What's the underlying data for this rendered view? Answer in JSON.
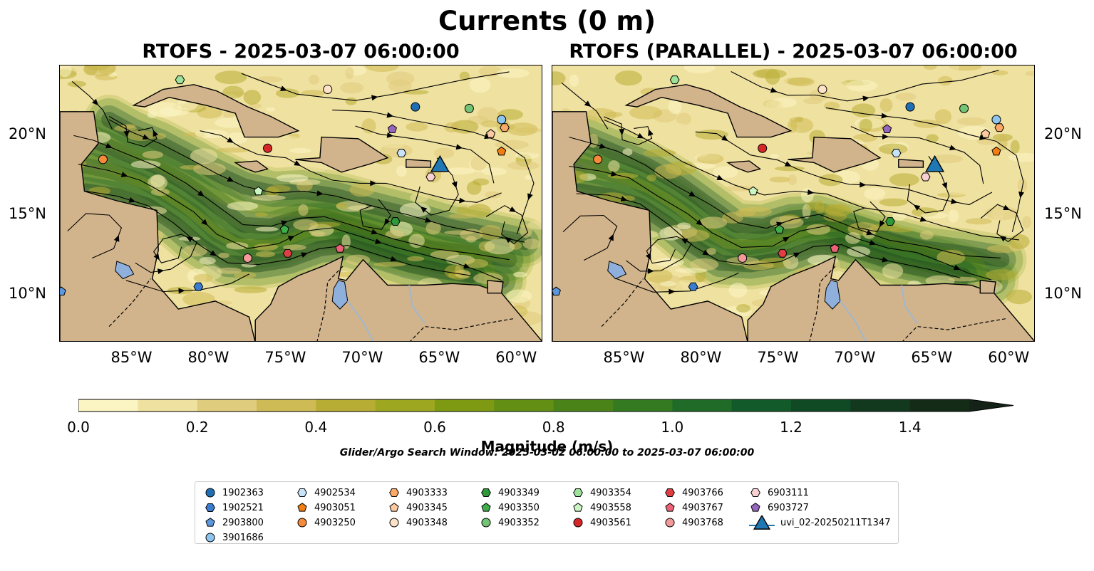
{
  "figure": {
    "suptitle": "Currents (0 m)",
    "search_window": "Glider/Argo Search Window: 2025-03-02 06:00:00 to 2025-03-07 06:00:00"
  },
  "panels": [
    {
      "title": "RTOFS - 2025-03-07 06:00:00"
    },
    {
      "title": "RTOFS (PARALLEL) - 2025-03-07 06:00:00"
    }
  ],
  "colors": {
    "land": "#d2b48c",
    "lake": "#8fb0dc",
    "river": "#9fb7cf",
    "colormap": [
      "#fbf5c4",
      "#efe1a0",
      "#e0cc7d",
      "#cfbb55",
      "#b8ad34",
      "#9da71f",
      "#7e9a12",
      "#628f14",
      "#4a8419",
      "#347a20",
      "#1f6b27",
      "#125a29",
      "#0f4a25",
      "#12391e",
      "#142c17",
      "#142218"
    ]
  },
  "chart_data": {
    "type": "heatmap",
    "variable": "current magnitude with streamlines",
    "colorbar": {
      "label": "Magnitude (m/s)",
      "min": 0.0,
      "max": 1.5,
      "step": 0.1,
      "extend": "max",
      "ticks": [
        0.0,
        0.2,
        0.4,
        0.6,
        0.8,
        1.0,
        1.2,
        1.4
      ],
      "tick_labels": [
        "0.0",
        "0.2",
        "0.4",
        "0.6",
        "0.8",
        "1.0",
        "1.2",
        "1.4"
      ]
    },
    "xaxis": {
      "range": [
        -89.7,
        -58.3
      ],
      "ticks": [
        -85,
        -80,
        -75,
        -70,
        -65,
        -60
      ],
      "tick_labels": [
        "85°W",
        "80°W",
        "75°W",
        "70°W",
        "65°W",
        "60°W"
      ]
    },
    "yaxis": {
      "range": [
        7.0,
        24.4
      ],
      "ticks": [
        10,
        15,
        20
      ],
      "tick_labels": [
        "10°N",
        "15°N",
        "20°N"
      ]
    },
    "land": [
      {
        "name": "cuba",
        "coords": [
          [
            -84.9,
            21.9
          ],
          [
            -83.0,
            22.9
          ],
          [
            -81.0,
            23.2
          ],
          [
            -79.5,
            22.8
          ],
          [
            -77.5,
            21.8
          ],
          [
            -76.0,
            21.2
          ],
          [
            -74.2,
            20.3
          ],
          [
            -75.5,
            19.9
          ],
          [
            -77.7,
            19.9
          ],
          [
            -78.3,
            21.4
          ],
          [
            -80.2,
            21.9
          ],
          [
            -82.6,
            22.4
          ],
          [
            -84.2,
            21.8
          ]
        ]
      },
      {
        "name": "hispaniola",
        "coords": [
          [
            -74.4,
            18.5
          ],
          [
            -72.8,
            18.6
          ],
          [
            -72.7,
            19.9
          ],
          [
            -70.3,
            19.8
          ],
          [
            -68.4,
            18.6
          ],
          [
            -69.6,
            18.2
          ],
          [
            -71.4,
            17.7
          ],
          [
            -72.7,
            18.3
          ]
        ]
      },
      {
        "name": "jamaica",
        "coords": [
          [
            -78.3,
            18.3
          ],
          [
            -76.9,
            18.4
          ],
          [
            -76.2,
            17.9
          ],
          [
            -77.0,
            17.7
          ],
          [
            -77.8,
            18.0
          ]
        ]
      },
      {
        "name": "puerto-rico",
        "coords": [
          [
            -67.2,
            18.5
          ],
          [
            -65.6,
            18.4
          ],
          [
            -65.6,
            18.0
          ],
          [
            -67.2,
            18.0
          ]
        ]
      },
      {
        "name": "central-america",
        "coords": [
          [
            -89.7,
            7.0
          ],
          [
            -89.7,
            21.5
          ],
          [
            -87.5,
            21.5
          ],
          [
            -87.2,
            19.5
          ],
          [
            -88.3,
            18.2
          ],
          [
            -88.1,
            16.5
          ],
          [
            -86.0,
            15.9
          ],
          [
            -83.4,
            15.3
          ],
          [
            -83.3,
            12.8
          ],
          [
            -83.7,
            11.0
          ],
          [
            -82.0,
            9.1
          ],
          [
            -79.6,
            9.6
          ],
          [
            -77.4,
            8.6
          ],
          [
            -77.0,
            7.0
          ]
        ]
      },
      {
        "name": "south-america",
        "coords": [
          [
            -77.0,
            7.0
          ],
          [
            -77.0,
            8.4
          ],
          [
            -76.0,
            9.4
          ],
          [
            -75.5,
            10.5
          ],
          [
            -74.2,
            11.2
          ],
          [
            -72.6,
            11.8
          ],
          [
            -71.3,
            12.4
          ],
          [
            -71.6,
            11.0
          ],
          [
            -71.1,
            10.9
          ],
          [
            -70.0,
            12.2
          ],
          [
            -68.4,
            10.6
          ],
          [
            -66.0,
            10.6
          ],
          [
            -64.2,
            10.7
          ],
          [
            -62.5,
            10.6
          ],
          [
            -61.0,
            10.1
          ],
          [
            -58.3,
            7.0
          ]
        ]
      },
      {
        "name": "trinidad",
        "coords": [
          [
            -61.9,
            10.9
          ],
          [
            -60.9,
            10.8
          ],
          [
            -61.0,
            10.1
          ],
          [
            -61.9,
            10.1
          ]
        ]
      }
    ],
    "lakes": [
      {
        "name": "lake-maracaibo",
        "coords": [
          [
            -71.6,
            10.9
          ],
          [
            -71.2,
            10.8
          ],
          [
            -71.0,
            9.6
          ],
          [
            -71.5,
            9.1
          ],
          [
            -72.0,
            9.6
          ],
          [
            -71.9,
            10.4
          ]
        ]
      },
      {
        "name": "lake-nicaragua",
        "coords": [
          [
            -86.0,
            12.1
          ],
          [
            -85.2,
            11.8
          ],
          [
            -84.9,
            11.3
          ],
          [
            -85.6,
            11.0
          ],
          [
            -86.1,
            11.5
          ]
        ]
      }
    ],
    "streamlines": [
      [
        [
          -88.5,
          18.2
        ],
        [
          -86.5,
          17.8
        ],
        [
          -84.5,
          17.2
        ],
        [
          -82.8,
          16.3
        ],
        [
          -81.0,
          15.2
        ],
        [
          -79.5,
          13.8
        ],
        [
          -77.5,
          12.9
        ],
        [
          -75.5,
          13.2
        ],
        [
          -73.8,
          14.0
        ],
        [
          -72.0,
          14.2
        ],
        [
          -70.0,
          13.6
        ],
        [
          -68.0,
          13.0
        ],
        [
          -66.0,
          12.5
        ],
        [
          -64.0,
          12.0
        ],
        [
          -62.5,
          11.5
        ],
        [
          -61.0,
          10.9
        ]
      ],
      [
        [
          -88.8,
          20.0
        ],
        [
          -87.5,
          19.7
        ],
        [
          -85.5,
          18.9
        ],
        [
          -83.5,
          18.1
        ],
        [
          -81.5,
          17.0
        ],
        [
          -79.5,
          15.6
        ],
        [
          -77.8,
          14.4
        ],
        [
          -76.0,
          14.3
        ],
        [
          -74.2,
          14.8
        ],
        [
          -72.5,
          14.9
        ],
        [
          -70.5,
          14.3
        ],
        [
          -68.0,
          13.5
        ],
        [
          -65.5,
          12.9
        ],
        [
          -63.0,
          12.6
        ],
        [
          -60.5,
          12.2
        ]
      ],
      [
        [
          -88.0,
          16.5
        ],
        [
          -86.0,
          16.2
        ],
        [
          -84.0,
          15.6
        ],
        [
          -82.3,
          14.5
        ],
        [
          -80.6,
          13.1
        ],
        [
          -78.8,
          12.0
        ],
        [
          -76.8,
          11.9
        ],
        [
          -74.8,
          12.2
        ],
        [
          -72.8,
          12.9
        ],
        [
          -71.0,
          13.1
        ],
        [
          -69.0,
          12.5
        ],
        [
          -67.0,
          11.9
        ],
        [
          -65.0,
          11.5
        ],
        [
          -63.0,
          11.2
        ]
      ],
      [
        [
          -86.5,
          21.0
        ],
        [
          -85.0,
          20.2
        ],
        [
          -83.2,
          19.5
        ],
        [
          -81.2,
          18.5
        ],
        [
          -79.5,
          17.6
        ],
        [
          -77.7,
          16.8
        ],
        [
          -75.8,
          16.4
        ],
        [
          -73.8,
          16.5
        ],
        [
          -71.8,
          16.2
        ],
        [
          -69.5,
          15.6
        ],
        [
          -67.0,
          15.0
        ],
        [
          -64.5,
          14.3
        ],
        [
          -62.0,
          13.8
        ],
        [
          -59.5,
          13.3
        ]
      ],
      [
        [
          -84.8,
          12.0
        ],
        [
          -83.8,
          11.4
        ],
        [
          -82.5,
          11.6
        ],
        [
          -81.2,
          12.4
        ],
        [
          -80.8,
          13.3
        ],
        [
          -81.8,
          13.8
        ],
        [
          -83.0,
          13.5
        ],
        [
          -83.6,
          12.7
        ],
        [
          -83.1,
          12.0
        ],
        [
          -82.0,
          12.3
        ],
        [
          -81.8,
          13.0
        ]
      ],
      [
        [
          -86.5,
          21.2
        ],
        [
          -85.4,
          20.6
        ],
        [
          -85.3,
          19.6
        ],
        [
          -84.2,
          19.3
        ],
        [
          -83.4,
          19.8
        ],
        [
          -83.7,
          20.5
        ],
        [
          -84.6,
          20.3
        ]
      ],
      [
        [
          -80.6,
          20.3
        ],
        [
          -79.2,
          20.0
        ],
        [
          -78.0,
          19.3
        ],
        [
          -76.8,
          18.8
        ],
        [
          -75.0,
          18.6
        ],
        [
          -73.5,
          17.8
        ],
        [
          -72.0,
          17.2
        ],
        [
          -70.2,
          17.0
        ],
        [
          -68.5,
          17.0
        ],
        [
          -66.5,
          16.5
        ],
        [
          -64.5,
          16.0
        ],
        [
          -62.6,
          15.8
        ],
        [
          -61.0,
          16.4
        ]
      ],
      [
        [
          -72.0,
          21.6
        ],
        [
          -69.5,
          21.5
        ],
        [
          -67.0,
          21.0
        ],
        [
          -64.8,
          20.6
        ],
        [
          -62.8,
          20.2
        ],
        [
          -61.0,
          19.6
        ],
        [
          -59.5,
          18.6
        ],
        [
          -58.9,
          17.0
        ],
        [
          -59.5,
          15.3
        ],
        [
          -60.0,
          13.8
        ]
      ],
      [
        [
          -65.2,
          18.6
        ],
        [
          -64.2,
          17.5
        ],
        [
          -63.8,
          16.3
        ],
        [
          -64.4,
          15.3
        ],
        [
          -65.6,
          15.0
        ],
        [
          -66.6,
          15.8
        ],
        [
          -66.3,
          16.8
        ]
      ],
      [
        [
          -69.0,
          16.0
        ],
        [
          -68.2,
          15.0
        ],
        [
          -68.8,
          14.1
        ],
        [
          -70.0,
          14.3
        ],
        [
          -70.2,
          15.3
        ],
        [
          -69.4,
          15.6
        ]
      ],
      [
        [
          -62.0,
          14.9
        ],
        [
          -60.8,
          15.6
        ],
        [
          -59.7,
          15.0
        ],
        [
          -59.3,
          13.9
        ],
        [
          -60.2,
          13.2
        ],
        [
          -61.0,
          13.8
        ],
        [
          -60.8,
          14.6
        ]
      ],
      [
        [
          -87.6,
          12.3
        ],
        [
          -86.2,
          12.9
        ],
        [
          -85.7,
          14.2
        ],
        [
          -86.5,
          15.0
        ],
        [
          -88.0,
          15.1
        ],
        [
          -89.2,
          14.0
        ]
      ],
      [
        [
          -77.9,
          23.9
        ],
        [
          -76.0,
          23.2
        ],
        [
          -74.3,
          22.6
        ],
        [
          -72.5,
          22.4
        ],
        [
          -70.5,
          22.2
        ],
        [
          -68.0,
          22.6
        ],
        [
          -65.5,
          23.1
        ],
        [
          -63.0,
          23.6
        ],
        [
          -60.5,
          24.0
        ]
      ],
      [
        [
          -88.9,
          23.4
        ],
        [
          -87.8,
          22.5
        ],
        [
          -86.9,
          21.6
        ],
        [
          -86.3,
          20.4
        ]
      ],
      [
        [
          -85.4,
          10.9
        ],
        [
          -83.0,
          10.2
        ],
        [
          -80.6,
          10.3
        ],
        [
          -78.6,
          10.7
        ],
        [
          -77.4,
          11.3
        ]
      ],
      [
        [
          -70.5,
          20.6
        ],
        [
          -69.0,
          20.1
        ],
        [
          -67.5,
          19.9
        ],
        [
          -66.0,
          19.7
        ],
        [
          -64.5,
          19.4
        ],
        [
          -63.0,
          19.1
        ],
        [
          -61.8,
          18.2
        ],
        [
          -61.5,
          17.0
        ]
      ]
    ],
    "markers": [
      {
        "id": "1902363",
        "shape": "circle",
        "color": "#1f6fb4",
        "lon": -66.6,
        "lat": 21.8
      },
      {
        "id": "1902521",
        "shape": "hexagon",
        "color": "#3a7dd0",
        "lon": -80.7,
        "lat": 10.5
      },
      {
        "id": "2903800",
        "shape": "pentagon",
        "color": "#5b97dc",
        "lon": -89.6,
        "lat": 10.2
      },
      {
        "id": "3901686",
        "shape": "circle",
        "color": "#8ec5ee",
        "lon": -61.0,
        "lat": 21.0
      },
      {
        "id": "4902534",
        "shape": "hexagon",
        "color": "#c7e3f8",
        "lon": -67.5,
        "lat": 18.9
      },
      {
        "id": "4903051",
        "shape": "pentagon",
        "color": "#f37d11",
        "lon": -61.0,
        "lat": 19.0
      },
      {
        "id": "4903250",
        "shape": "circle",
        "color": "#f58a3a",
        "lon": -86.9,
        "lat": 18.5
      },
      {
        "id": "4903333",
        "shape": "hexagon",
        "color": "#fca867",
        "lon": -60.8,
        "lat": 20.5
      },
      {
        "id": "4903345",
        "shape": "pentagon",
        "color": "#fdc9a0",
        "lon": -61.7,
        "lat": 20.1
      },
      {
        "id": "4903348",
        "shape": "circle",
        "color": "#fde2c7",
        "lon": -72.3,
        "lat": 22.9
      },
      {
        "id": "4903349",
        "shape": "hexagon",
        "color": "#2d9a3a",
        "lon": -67.9,
        "lat": 14.6
      },
      {
        "id": "4903350",
        "shape": "pentagon",
        "color": "#3fae4a",
        "lon": -75.1,
        "lat": 14.1
      },
      {
        "id": "4903352",
        "shape": "circle",
        "color": "#74c476",
        "lon": -63.1,
        "lat": 21.7
      },
      {
        "id": "4903354",
        "shape": "hexagon",
        "color": "#9de29a",
        "lon": -81.9,
        "lat": 23.5
      },
      {
        "id": "4903558",
        "shape": "pentagon",
        "color": "#ccf5c4",
        "lon": -76.8,
        "lat": 16.5
      },
      {
        "id": "4903561",
        "shape": "circle",
        "color": "#d62728",
        "lon": -76.2,
        "lat": 19.2
      },
      {
        "id": "4903766",
        "shape": "hexagon",
        "color": "#df3e43",
        "lon": -74.9,
        "lat": 12.6
      },
      {
        "id": "4903767",
        "shape": "pentagon",
        "color": "#ee6278",
        "lon": -71.5,
        "lat": 12.9
      },
      {
        "id": "4903768",
        "shape": "circle",
        "color": "#f29a9a",
        "lon": -77.5,
        "lat": 12.3
      },
      {
        "id": "6903111",
        "shape": "hexagon",
        "color": "#fad1d3",
        "lon": -65.6,
        "lat": 17.4
      },
      {
        "id": "6903727",
        "shape": "pentagon",
        "color": "#9467bd",
        "lon": -68.1,
        "lat": 20.4
      },
      {
        "id": "uvi_02-20250211T1347",
        "shape": "triangle",
        "color": "#1f77b4",
        "lon": -65.0,
        "lat": 18.1
      }
    ],
    "legend": {
      "columns": [
        [
          "1902363",
          "1902521",
          "2903800",
          "3901686"
        ],
        [
          "4902534",
          "4903051",
          "4903250"
        ],
        [
          "4903333",
          "4903345",
          "4903348"
        ],
        [
          "4903349",
          "4903350",
          "4903352"
        ],
        [
          "4903354",
          "4903558",
          "4903561"
        ],
        [
          "4903766",
          "4903767",
          "4903768"
        ],
        [
          "6903111",
          "6903727",
          "uvi_02-20250211T1347"
        ]
      ]
    }
  }
}
